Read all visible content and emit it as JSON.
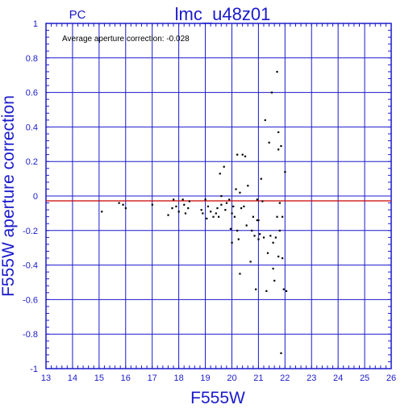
{
  "chart_data": {
    "type": "scatter",
    "title": "lmc_u48z01",
    "corner_label": "PC",
    "annotation": "Average aperture correction: -0.028",
    "xlabel": "F555W",
    "ylabel": "F555W aperture correction",
    "xlim": [
      13,
      26
    ],
    "ylim": [
      -1,
      1
    ],
    "x_ticks": [
      "13",
      "14",
      "15",
      "16",
      "17",
      "18",
      "19",
      "20",
      "21",
      "22",
      "23",
      "24",
      "25",
      "26"
    ],
    "y_ticks": [
      "1",
      "0.8",
      "0.6",
      "0.4",
      "0.2",
      "0",
      "-0.2",
      "-0.4",
      "-0.6",
      "-0.8",
      "-1"
    ],
    "grid": true,
    "reference_line": -0.028,
    "colors": {
      "grid": "#1a1acc",
      "axes_text": "#1a1acc",
      "reference_line": "#cc0000",
      "points": "#000000"
    },
    "series": [
      {
        "x": [
          15.1,
          15.75,
          15.9,
          16.0,
          17.0,
          17.6,
          17.75,
          17.8,
          17.9,
          18.0,
          18.15,
          18.2,
          18.25,
          18.35,
          18.4,
          18.85,
          18.9,
          19.0,
          19.05,
          19.1,
          19.2,
          19.3,
          19.4,
          19.45,
          19.5,
          19.55,
          19.6,
          19.6,
          19.7,
          19.75,
          19.8,
          19.9,
          19.95,
          20.0,
          20.0,
          20.05,
          20.1,
          20.15,
          20.2,
          20.2,
          20.25,
          20.3,
          20.3,
          20.35,
          20.4,
          20.45,
          20.5,
          20.55,
          20.6,
          20.7,
          20.75,
          20.8,
          20.85,
          20.9,
          20.95,
          20.95,
          21.0,
          21.0,
          21.05,
          21.1,
          21.15,
          21.2,
          21.25,
          21.3,
          21.35,
          21.4,
          21.45,
          21.5,
          21.55,
          21.55,
          21.6,
          21.65,
          21.7,
          21.7,
          21.75,
          21.75,
          21.75,
          21.8,
          21.8,
          21.85,
          21.85,
          21.9,
          21.9,
          21.95,
          22.0,
          22.05
        ],
        "y": [
          -0.09,
          -0.04,
          -0.05,
          -0.07,
          -0.05,
          -0.11,
          -0.07,
          -0.02,
          -0.06,
          -0.09,
          -0.02,
          -0.05,
          -0.1,
          -0.07,
          -0.03,
          -0.08,
          -0.1,
          -0.02,
          -0.13,
          -0.06,
          -0.09,
          -0.12,
          -0.1,
          -0.07,
          -0.12,
          0.13,
          0.0,
          -0.05,
          0.17,
          -0.08,
          -0.04,
          -0.02,
          -0.19,
          -0.1,
          -0.27,
          -0.06,
          -0.12,
          0.04,
          0.24,
          -0.2,
          -0.25,
          0.02,
          -0.45,
          -0.07,
          0.24,
          -0.06,
          0.23,
          -0.17,
          0.06,
          -0.38,
          -0.2,
          -0.12,
          -0.23,
          -0.54,
          -0.02,
          -0.14,
          -0.14,
          -0.25,
          -0.22,
          0.1,
          -0.03,
          -0.24,
          0.44,
          -0.55,
          -0.33,
          0.31,
          -0.23,
          0.6,
          -0.42,
          -0.27,
          -0.49,
          -0.24,
          -0.12,
          0.72,
          0.37,
          0.27,
          -0.35,
          -0.2,
          -0.04,
          0.29,
          -0.91,
          -0.36,
          -0.12,
          -0.54,
          0.14,
          -0.55
        ]
      }
    ]
  }
}
